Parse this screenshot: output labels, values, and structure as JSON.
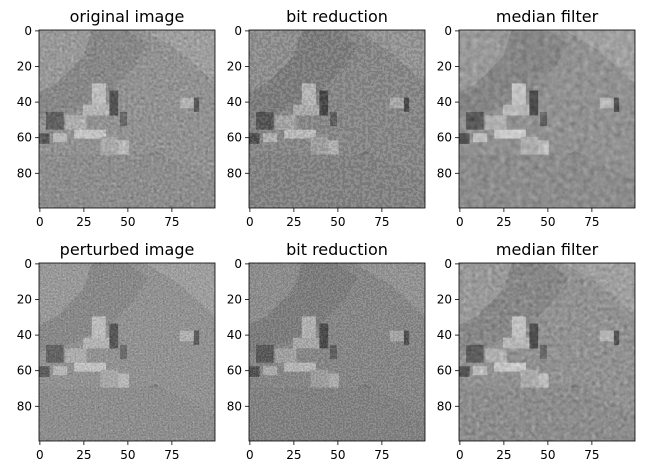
{
  "figure": {
    "background": "#ffffff",
    "panels": [
      {
        "title": "original image",
        "xticks": [
          "0",
          "25",
          "50",
          "75"
        ],
        "yticks": [
          "0",
          "20",
          "40",
          "60",
          "80"
        ],
        "image_desc": "grayscale village landscape with houses on hillside",
        "colormap": "gray"
      },
      {
        "title": "bit reduction",
        "xticks": [
          "0",
          "25",
          "50",
          "75"
        ],
        "yticks": [
          "0",
          "20",
          "40",
          "60",
          "80"
        ],
        "image_desc": "same scene after bit-depth reduction",
        "colormap": "gray"
      },
      {
        "title": "median filter",
        "xticks": [
          "0",
          "25",
          "50",
          "75"
        ],
        "yticks": [
          "0",
          "20",
          "40",
          "60",
          "80"
        ],
        "image_desc": "same scene after median filtering",
        "colormap": "gray"
      },
      {
        "title": "perturbed image",
        "xticks": [
          "0",
          "25",
          "50",
          "75"
        ],
        "yticks": [
          "0",
          "20",
          "40",
          "60",
          "80"
        ],
        "image_desc": "scene with adversarial noise added",
        "colormap": "gray"
      },
      {
        "title": "bit reduction",
        "xticks": [
          "0",
          "25",
          "50",
          "75"
        ],
        "yticks": [
          "0",
          "20",
          "40",
          "60",
          "80"
        ],
        "image_desc": "perturbed scene after bit-depth reduction",
        "colormap": "gray"
      },
      {
        "title": "median filter",
        "xticks": [
          "0",
          "25",
          "50",
          "75"
        ],
        "yticks": [
          "0",
          "20",
          "40",
          "60",
          "80"
        ],
        "image_desc": "perturbed scene after median filtering",
        "colormap": "gray"
      }
    ]
  }
}
